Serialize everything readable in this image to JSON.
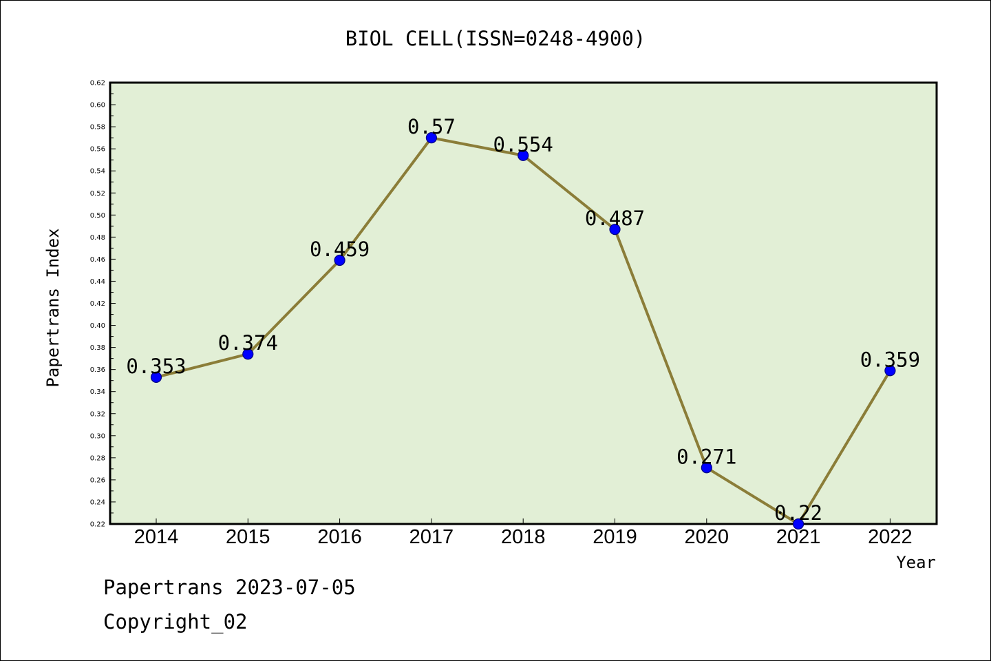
{
  "footer": {
    "line1": "Papertrans 2023-07-05",
    "line2": "Copyright_02"
  },
  "colors": {
    "plot_background": "#e2efd6",
    "line": "#8b7d38",
    "marker_fill": "#0000ff",
    "marker_edge": "#000080",
    "frame": "#000000"
  },
  "chart_data": {
    "type": "line",
    "title": "BIOL CELL(ISSN=0248-4900)",
    "xlabel": "Year",
    "ylabel": "Papertrans Index",
    "categories": [
      "2014",
      "2015",
      "2016",
      "2017",
      "2018",
      "2019",
      "2020",
      "2021",
      "2022"
    ],
    "values": [
      0.353,
      0.374,
      0.459,
      0.57,
      0.554,
      0.487,
      0.271,
      0.22,
      0.359
    ],
    "data_labels": [
      "0.353",
      "0.374",
      "0.459",
      "0.57",
      "0.554",
      "0.487",
      "0.271",
      "0.22",
      "0.359"
    ],
    "ylim": [
      0.22,
      0.62
    ],
    "yticks": [
      "0.22",
      "0.24",
      "0.26",
      "0.28",
      "0.30",
      "0.32",
      "0.34",
      "0.36",
      "0.38",
      "0.40",
      "0.42",
      "0.44",
      "0.46",
      "0.48",
      "0.50",
      "0.52",
      "0.54",
      "0.56",
      "0.58",
      "0.60",
      "0.62"
    ],
    "grid": false,
    "legend": "none"
  }
}
